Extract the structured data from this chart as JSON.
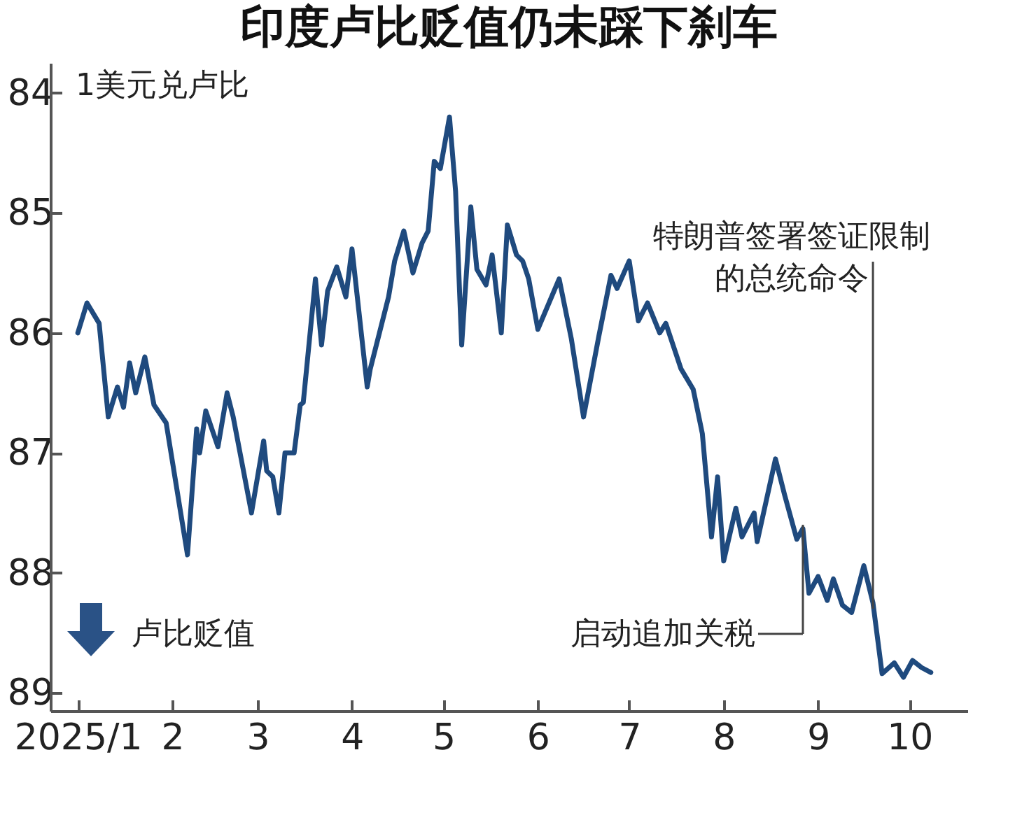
{
  "chart_data": {
    "type": "line",
    "title": "印度卢比贬值仍未踩下刹车",
    "x": [
      "2025-01-01",
      "2025-01-04",
      "2025-01-08",
      "2025-01-11",
      "2025-01-14",
      "2025-01-16",
      "2025-01-18",
      "2025-01-20",
      "2025-01-23",
      "2025-01-26",
      "2025-01-30",
      "2025-02-06",
      "2025-02-09",
      "2025-02-10",
      "2025-02-12",
      "2025-02-16",
      "2025-02-19",
      "2025-02-21",
      "2025-02-24",
      "2025-02-27",
      "2025-03-03",
      "2025-03-04",
      "2025-03-06",
      "2025-03-08",
      "2025-03-10",
      "2025-03-13",
      "2025-03-15",
      "2025-03-16",
      "2025-03-20",
      "2025-03-22",
      "2025-03-24",
      "2025-03-27",
      "2025-03-30",
      "2025-04-01",
      "2025-04-06",
      "2025-04-07",
      "2025-04-10",
      "2025-04-13",
      "2025-04-15",
      "2025-04-18",
      "2025-04-21",
      "2025-04-24",
      "2025-04-26",
      "2025-04-28",
      "2025-04-30",
      "2025-05-03",
      "2025-05-05",
      "2025-05-07",
      "2025-05-10",
      "2025-05-12",
      "2025-05-15",
      "2025-05-17",
      "2025-05-20",
      "2025-05-22",
      "2025-05-25",
      "2025-05-27",
      "2025-05-29",
      "2025-06-01",
      "2025-06-08",
      "2025-06-12",
      "2025-06-16",
      "2025-06-21",
      "2025-06-25",
      "2025-06-27",
      "2025-07-01",
      "2025-07-04",
      "2025-07-07",
      "2025-07-11",
      "2025-07-13",
      "2025-07-18",
      "2025-07-22",
      "2025-07-25",
      "2025-07-28",
      "2025-07-30",
      "2025-08-01",
      "2025-08-05",
      "2025-08-07",
      "2025-08-11",
      "2025-08-12",
      "2025-08-18",
      "2025-08-21",
      "2025-08-25",
      "2025-08-27",
      "2025-08-29",
      "2025-09-01",
      "2025-09-04",
      "2025-09-06",
      "2025-09-09",
      "2025-09-12",
      "2025-09-16",
      "2025-09-19",
      "2025-09-22",
      "2025-09-26",
      "2025-09-29",
      "2025-10-02",
      "2025-10-05",
      "2025-10-08"
    ],
    "series": [
      {
        "color": "#1f4a7e",
        "values": [
          86.0,
          85.75,
          85.92,
          86.7,
          86.45,
          86.62,
          86.25,
          86.5,
          86.2,
          86.6,
          86.75,
          87.85,
          86.8,
          87.0,
          86.65,
          86.95,
          86.5,
          86.7,
          87.1,
          87.5,
          86.9,
          87.15,
          87.2,
          87.5,
          87.0,
          87.0,
          86.6,
          86.58,
          85.55,
          86.1,
          85.65,
          85.45,
          85.7,
          85.3,
          86.45,
          86.3,
          86.0,
          85.7,
          85.4,
          85.15,
          85.5,
          85.25,
          85.15,
          84.57,
          84.63,
          84.2,
          84.82,
          86.1,
          84.95,
          85.47,
          85.6,
          85.35,
          86.0,
          85.1,
          85.35,
          85.4,
          85.55,
          85.97,
          85.55,
          86.05,
          86.7,
          86.03,
          85.52,
          85.63,
          85.4,
          85.9,
          85.75,
          86.0,
          85.92,
          86.3,
          86.47,
          86.84,
          87.7,
          87.2,
          87.9,
          87.46,
          87.7,
          87.5,
          87.74,
          87.05,
          87.35,
          87.72,
          87.63,
          88.17,
          88.03,
          88.23,
          88.05,
          88.27,
          88.33,
          87.94,
          88.25,
          88.84,
          88.75,
          88.87,
          88.73,
          88.79,
          88.83
        ]
      }
    ],
    "xlim": [
      "2024-12-23",
      "2025-10-20"
    ],
    "xticks": [
      {
        "value": "2025-01-01",
        "label": "2025/1"
      },
      {
        "value": "2025-02-01",
        "label": "2"
      },
      {
        "value": "2025-03-01",
        "label": "3"
      },
      {
        "value": "2025-04-01",
        "label": "4"
      },
      {
        "value": "2025-05-01",
        "label": "5"
      },
      {
        "value": "2025-06-01",
        "label": "6"
      },
      {
        "value": "2025-07-01",
        "label": "7"
      },
      {
        "value": "2025-08-01",
        "label": "8"
      },
      {
        "value": "2025-09-01",
        "label": "9"
      },
      {
        "value": "2025-10-01",
        "label": "10"
      }
    ],
    "ylim": [
      89.15,
      83.75
    ],
    "yticks": [
      84,
      85,
      86,
      87,
      88,
      89
    ],
    "grid": false,
    "annotations": [
      "1美元兑卢比",
      "卢比贬值"
    ],
    "ref_lines": [
      {
        "axis": "x",
        "value": "2025-08-27",
        "label": "启动追加关税"
      },
      {
        "axis": "x",
        "value": "2025-09-19",
        "label": "特朗普签署签证限制的总统命令"
      }
    ]
  }
}
